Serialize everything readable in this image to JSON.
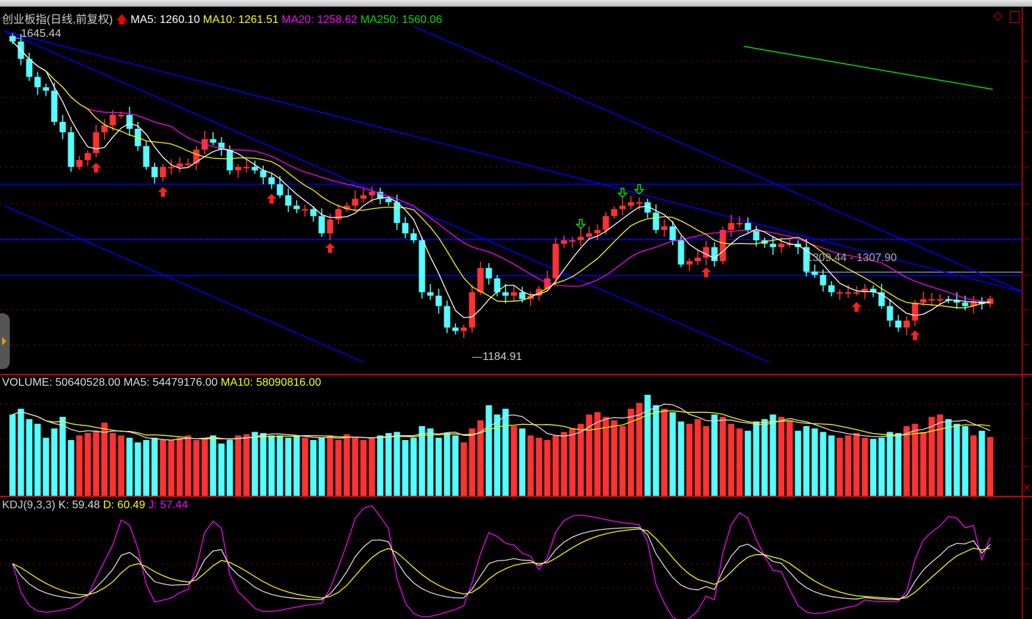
{
  "header": {
    "title": "创业板指(日线,前复权)",
    "ma5": "MA5: 1260.10",
    "ma10": "MA10: 1261.51",
    "ma20": "MA20: 1258.62",
    "ma250": "MA250: 1560.06"
  },
  "volume_header": {
    "volume": "VOLUME: 50640528.00",
    "ma5": "MA5: 54479176.00",
    "ma10": "MA10: 58090816.00"
  },
  "kdj_header": {
    "name": "KDJ(9,3,3)",
    "k": "K: 59.48",
    "d": "D: 60.49",
    "j": "J: 57.44"
  },
  "annotations": {
    "high_label": "1645.44",
    "low_label": "1184.91",
    "range_label": "1309.44 - 1307.90"
  },
  "colors": {
    "up": "#ff3232",
    "down": "#54ffff",
    "ma5": "#ffffff",
    "ma10": "#ffff00",
    "ma20": "#ff00ff",
    "ma250": "#00e000",
    "grid": "#a00000",
    "trend": "#0000ff"
  },
  "chart_data": {
    "type": "candlestick",
    "closes": [
      1641,
      1616,
      1590,
      1575,
      1570,
      1525,
      1510,
      1460,
      1470,
      1480,
      1510,
      1520,
      1535,
      1535,
      1515,
      1490,
      1460,
      1445,
      1460,
      1460,
      1465,
      1465,
      1485,
      1500,
      1495,
      1485,
      1455,
      1460,
      1460,
      1455,
      1445,
      1435,
      1419,
      1404,
      1399,
      1399,
      1389,
      1364,
      1384,
      1399,
      1404,
      1414,
      1419,
      1424,
      1414,
      1409,
      1379,
      1364,
      1354,
      1279,
      1274,
      1259,
      1228,
      1223,
      1228,
      1279,
      1314,
      1299,
      1279,
      1274,
      1279,
      1269,
      1274,
      1284,
      1299,
      1349,
      1354,
      1354,
      1359,
      1364,
      1369,
      1389,
      1399,
      1404,
      1409,
      1409,
      1394,
      1369,
      1374,
      1354,
      1319,
      1324,
      1329,
      1344,
      1324,
      1369,
      1379,
      1379,
      1369,
      1354,
      1349,
      1344,
      1349,
      1349,
      1344,
      1309,
      1304,
      1289,
      1279,
      1279,
      1279,
      1279,
      1284,
      1279,
      1259,
      1238,
      1228,
      1238,
      1264,
      1269,
      1269,
      1269,
      1267,
      1264,
      1259,
      1266,
      1262,
      1270
    ],
    "volume_millions": [
      70,
      75,
      66,
      62,
      50,
      58,
      68,
      48,
      52,
      54,
      56,
      63,
      54,
      52,
      50,
      46,
      48,
      50,
      48,
      48,
      50,
      52,
      48,
      50,
      52,
      45,
      48,
      52,
      53,
      55,
      54,
      52,
      52,
      50,
      52,
      50,
      48,
      50,
      52,
      48,
      53,
      50,
      48,
      50,
      52,
      54,
      55,
      48,
      50,
      60,
      58,
      50,
      54,
      52,
      46,
      58,
      65,
      78,
      70,
      75,
      60,
      58,
      52,
      50,
      48,
      52,
      55,
      58,
      62,
      70,
      72,
      68,
      65,
      60,
      75,
      80,
      87,
      78,
      75,
      72,
      64,
      62,
      66,
      60,
      70,
      68,
      62,
      58,
      56,
      64,
      66,
      70,
      68,
      65,
      56,
      60,
      58,
      55,
      52,
      50,
      52,
      54,
      50,
      49,
      50,
      55,
      54,
      60,
      62,
      55,
      68,
      70,
      66,
      62,
      60,
      52,
      56,
      50.6
    ],
    "price_range": [
      1160,
      1691
    ],
    "horizontal_lines": [
      1435,
      1355,
      1303
    ],
    "range_line": 1308,
    "trendlines": [
      {
        "from": [
          -1,
          1656
        ],
        "to": [
          121,
          1279
        ]
      },
      {
        "from": [
          -1,
          1404
        ],
        "to": [
          42,
          1178
        ]
      },
      {
        "from": [
          48,
          1663
        ],
        "to": [
          121,
          1279
        ]
      },
      {
        "from": [
          -1,
          1656
        ],
        "to": [
          90.5,
          1178
        ]
      }
    ],
    "ma250_segment": {
      "from": [
        87.5,
        1634
      ],
      "to": [
        117.3,
        1572
      ]
    },
    "buy_signals": [
      10,
      18,
      31,
      38,
      83,
      101,
      108
    ],
    "sell_signals": [
      73,
      68,
      75
    ],
    "high": {
      "index": 0,
      "price": 1645.44
    },
    "low": {
      "index": 55,
      "price": 1184.91
    }
  }
}
